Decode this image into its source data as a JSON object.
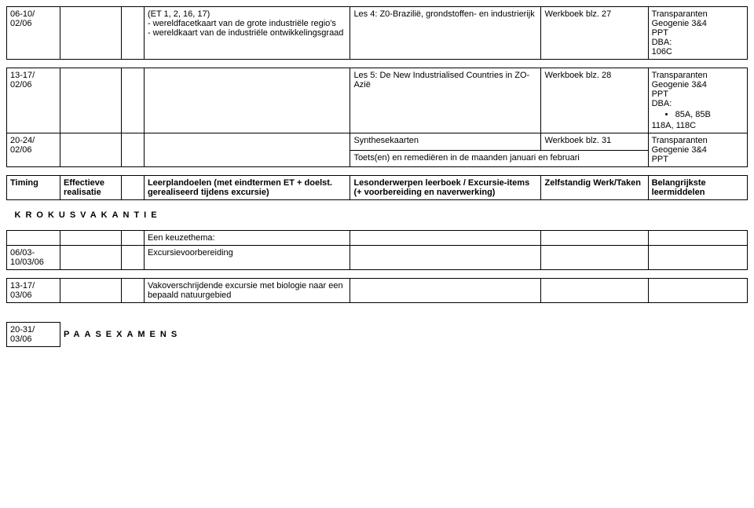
{
  "rows": [
    {
      "timing": "06-10/\n02/06",
      "doel": "(ET 1, 2, 16, 17)\n- wereldfacetkaart van de grote industriële regio's\n- wereldkaart van de industriële ontwikkelingsgraad",
      "les": "Les 4: Z0-Brazilië, grondstoffen- en industrierijk",
      "zelf": "Werkboek blz. 27",
      "belang": "Transparanten Geogenie 3&4\nPPT\nDBA:\n106C"
    },
    {
      "timing": "13-17/\n02/06",
      "doel": "",
      "les": "Les 5: De New Industrialised Countries in ZO-Azië",
      "zelf": "Werkboek blz. 28",
      "belang_pre": "Transparanten Geogenie 3&4\nPPT\nDBA:",
      "belang_li1": "85A, 85B",
      "belang_post": "118A, 118C"
    },
    {
      "timing": "20-24/\n02/06",
      "doel": "",
      "les": "Synthesekaarten",
      "zelf": "Werkboek blz. 31",
      "belang": "Transparanten Geogenie 3&4\nPPT",
      "les2": "Toets(en) en remediëren in de maanden januari en februari"
    }
  ],
  "header": {
    "timing": "Timing",
    "real": "Effectieve realisatie",
    "doel": "Leerplandoelen (met eindtermen ET + doelst. gerealiseerd tijdens excursie)",
    "les": "Lesonderwerpen leerboek / Excursie-items (+ voorbereiding en naverwerking)",
    "zelf": "Zelfstandig Werk/Taken",
    "belang": "Belangrijkste leermiddelen"
  },
  "section1": "KROKUSVAKANTIE",
  "rows2": [
    {
      "timing": "",
      "doel": "Een keuzethema:",
      "les": "",
      "zelf": "",
      "belang": ""
    },
    {
      "timing": "06/03-10/03/06",
      "doel": "Excursievoorbereiding",
      "les": "",
      "zelf": "",
      "belang": ""
    },
    {
      "timing": "13-17/\n03/06",
      "doel": "Vakoverschrijdende excursie met biologie naar een bepaald natuurgebied",
      "les": "",
      "zelf": "",
      "belang": ""
    }
  ],
  "exam": {
    "timing": "20-31/\n03/06",
    "label": "PAASEXAMENS"
  }
}
